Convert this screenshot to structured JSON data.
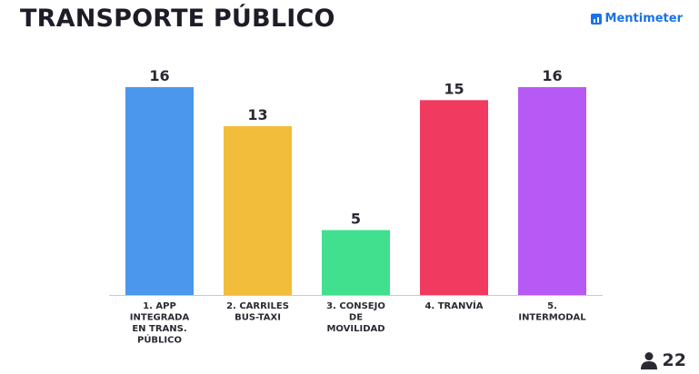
{
  "title": "TRANSPORTE PÚBLICO",
  "brand": {
    "name": "Mentimeter",
    "color": "#1a73e8"
  },
  "participants": {
    "count": "22",
    "icon": "person-icon"
  },
  "chart_data": {
    "type": "bar",
    "title": "TRANSPORTE PÚBLICO",
    "categories": [
      [
        "1. APP",
        "INTEGRADA",
        "EN TRANS.",
        "PÚBLICO"
      ],
      [
        "2. CARRILES",
        "BUS-TAXI"
      ],
      [
        "3. CONSEJO",
        "DE",
        "MOVILIDAD"
      ],
      [
        "4. TRANVÍA"
      ],
      [
        "5.",
        "INTERMODAL"
      ]
    ],
    "values": [
      16,
      13,
      5,
      15,
      16
    ],
    "colors": [
      "#4b97ee",
      "#f1bd3b",
      "#41e08e",
      "#f03a5f",
      "#b75af5"
    ],
    "ylim": [
      0,
      16
    ],
    "grid": false,
    "xlabel": "",
    "ylabel": ""
  }
}
